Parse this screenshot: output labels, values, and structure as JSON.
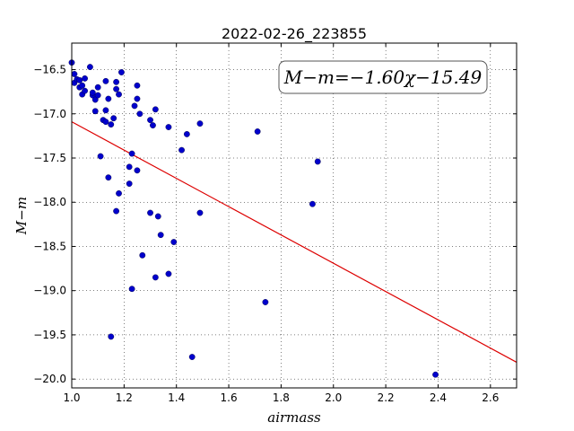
{
  "chart_data": {
    "type": "scatter",
    "title": "2022-02-26_223855",
    "xlabel": "airmass",
    "ylabel": "M−m",
    "xlim": [
      1.0,
      2.7
    ],
    "ylim": [
      -20.1,
      -16.2
    ],
    "y_inverted": false,
    "grid": true,
    "x_ticks": [
      {
        "value": 1.0,
        "label": "1.0"
      },
      {
        "value": 1.2,
        "label": "1.2"
      },
      {
        "value": 1.4,
        "label": "1.4"
      },
      {
        "value": 1.6,
        "label": "1.6"
      },
      {
        "value": 1.8,
        "label": "1.8"
      },
      {
        "value": 2.0,
        "label": "2.0"
      },
      {
        "value": 2.2,
        "label": "2.2"
      },
      {
        "value": 2.4,
        "label": "2.4"
      },
      {
        "value": 2.6,
        "label": "2.6"
      }
    ],
    "y_ticks": [
      {
        "value": -16.5,
        "label": "−16.5"
      },
      {
        "value": -17.0,
        "label": "−17.0"
      },
      {
        "value": -17.5,
        "label": "−17.5"
      },
      {
        "value": -18.0,
        "label": "−18.0"
      },
      {
        "value": -18.5,
        "label": "−18.5"
      },
      {
        "value": -19.0,
        "label": "−19.0"
      },
      {
        "value": -19.5,
        "label": "−19.5"
      },
      {
        "value": -20.0,
        "label": "−20.0"
      }
    ],
    "annotation": "M−m=−1.60χ−15.49",
    "annotation_placement": "top-right",
    "fit": {
      "slope": -1.6,
      "intercept": -15.49,
      "color": "#dd0000"
    },
    "point_color": "#0000cc",
    "points": [
      {
        "x": 1.0,
        "y": -16.42
      },
      {
        "x": 1.01,
        "y": -16.55
      },
      {
        "x": 1.01,
        "y": -16.65
      },
      {
        "x": 1.02,
        "y": -16.61
      },
      {
        "x": 1.03,
        "y": -16.7
      },
      {
        "x": 1.03,
        "y": -16.62
      },
      {
        "x": 1.04,
        "y": -16.78
      },
      {
        "x": 1.04,
        "y": -16.68
      },
      {
        "x": 1.05,
        "y": -16.6
      },
      {
        "x": 1.05,
        "y": -16.74
      },
      {
        "x": 1.07,
        "y": -16.47
      },
      {
        "x": 1.08,
        "y": -16.79
      },
      {
        "x": 1.08,
        "y": -16.76
      },
      {
        "x": 1.09,
        "y": -16.84
      },
      {
        "x": 1.09,
        "y": -16.97
      },
      {
        "x": 1.1,
        "y": -16.7
      },
      {
        "x": 1.1,
        "y": -16.79
      },
      {
        "x": 1.11,
        "y": -17.48
      },
      {
        "x": 1.12,
        "y": -17.07
      },
      {
        "x": 1.13,
        "y": -16.63
      },
      {
        "x": 1.13,
        "y": -16.96
      },
      {
        "x": 1.13,
        "y": -17.09
      },
      {
        "x": 1.14,
        "y": -16.83
      },
      {
        "x": 1.14,
        "y": -17.72
      },
      {
        "x": 1.15,
        "y": -17.12
      },
      {
        "x": 1.15,
        "y": -19.52
      },
      {
        "x": 1.16,
        "y": -17.05
      },
      {
        "x": 1.17,
        "y": -16.64
      },
      {
        "x": 1.17,
        "y": -16.72
      },
      {
        "x": 1.17,
        "y": -18.1
      },
      {
        "x": 1.18,
        "y": -17.9
      },
      {
        "x": 1.18,
        "y": -16.78
      },
      {
        "x": 1.19,
        "y": -16.53
      },
      {
        "x": 1.22,
        "y": -17.6
      },
      {
        "x": 1.22,
        "y": -17.79
      },
      {
        "x": 1.23,
        "y": -17.45
      },
      {
        "x": 1.23,
        "y": -18.98
      },
      {
        "x": 1.24,
        "y": -16.91
      },
      {
        "x": 1.25,
        "y": -17.64
      },
      {
        "x": 1.25,
        "y": -16.83
      },
      {
        "x": 1.25,
        "y": -16.68
      },
      {
        "x": 1.26,
        "y": -17.0
      },
      {
        "x": 1.27,
        "y": -18.6
      },
      {
        "x": 1.3,
        "y": -17.07
      },
      {
        "x": 1.3,
        "y": -18.12
      },
      {
        "x": 1.31,
        "y": -17.13
      },
      {
        "x": 1.32,
        "y": -16.95
      },
      {
        "x": 1.32,
        "y": -18.85
      },
      {
        "x": 1.33,
        "y": -18.16
      },
      {
        "x": 1.34,
        "y": -18.37
      },
      {
        "x": 1.37,
        "y": -17.15
      },
      {
        "x": 1.37,
        "y": -18.81
      },
      {
        "x": 1.39,
        "y": -18.45
      },
      {
        "x": 1.42,
        "y": -17.41
      },
      {
        "x": 1.44,
        "y": -17.23
      },
      {
        "x": 1.46,
        "y": -19.75
      },
      {
        "x": 1.49,
        "y": -17.11
      },
      {
        "x": 1.49,
        "y": -18.12
      },
      {
        "x": 1.71,
        "y": -17.2
      },
      {
        "x": 1.74,
        "y": -19.13
      },
      {
        "x": 1.92,
        "y": -18.02
      },
      {
        "x": 1.94,
        "y": -17.54
      },
      {
        "x": 2.39,
        "y": -19.95
      }
    ]
  }
}
